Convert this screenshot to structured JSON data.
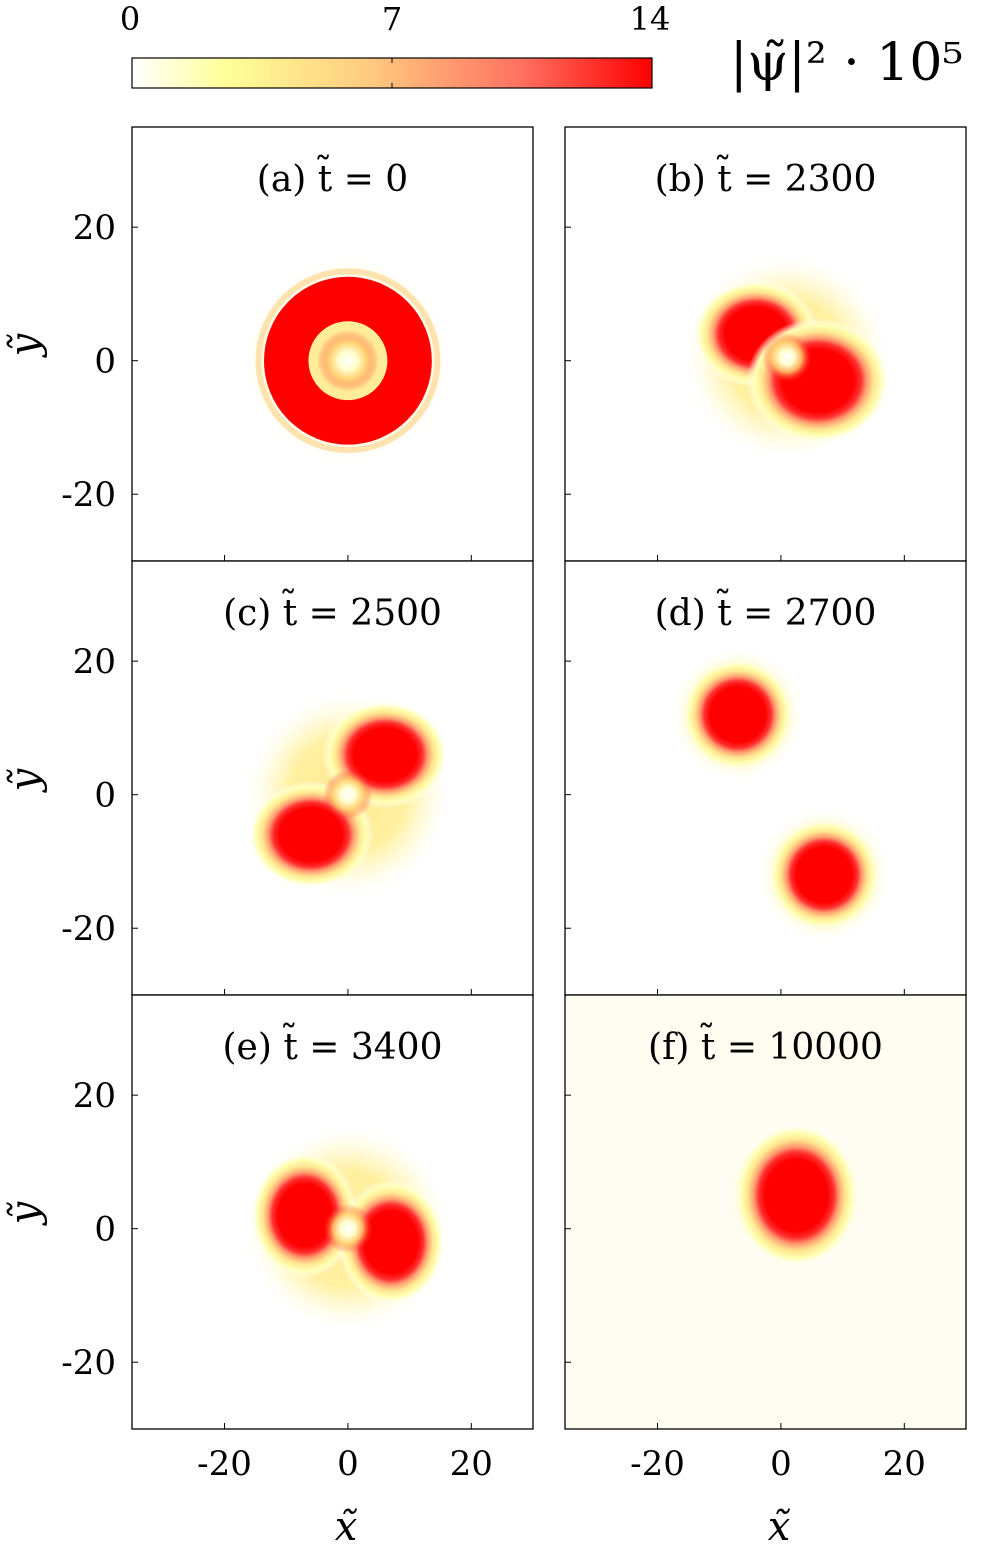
{
  "colorbar": {
    "ticks": [
      "0",
      "7",
      "14"
    ],
    "tick_values": [
      0,
      7,
      14
    ],
    "range": [
      0,
      14
    ],
    "label": "|ψ̃|² · 10⁵",
    "colormap": [
      "#ffffff",
      "#ffff99",
      "#ffcc80",
      "#ff7060",
      "#ff0000"
    ]
  },
  "axes": {
    "xlabel": "x̃",
    "ylabel": "ỹ",
    "x_tick_labels": [
      "-20",
      "0",
      "20"
    ],
    "y_tick_labels": [
      "20",
      "0",
      "-20"
    ]
  },
  "chart_data": [
    {
      "type": "heatmap",
      "title": "(a) t̃ = 0",
      "t": 0,
      "xlim": [
        -35,
        30
      ],
      "ylim": [
        -30,
        35
      ],
      "xticks": [
        -20,
        0,
        20
      ],
      "yticks": [
        -20,
        0,
        20
      ],
      "blobs": [
        {
          "shape": "ring",
          "cx": 0,
          "cy": 0,
          "radius": 10,
          "width": 4.5,
          "peak": 14
        }
      ],
      "halo_radius": 17
    },
    {
      "type": "heatmap",
      "title": "(b) t̃ = 2300",
      "t": 2300,
      "xlim": [
        -35,
        30
      ],
      "ylim": [
        -30,
        35
      ],
      "xticks": [
        -20,
        0,
        20
      ],
      "yticks": [
        -20,
        0,
        20
      ],
      "blobs": [
        {
          "shape": "lobe",
          "cx": -4,
          "cy": 4,
          "rx": 7,
          "ry": 6,
          "peak": 14
        },
        {
          "shape": "lobe",
          "cx": 6,
          "cy": -3,
          "rx": 8,
          "ry": 7,
          "peak": 14
        }
      ],
      "halo_radius": 17
    },
    {
      "type": "heatmap",
      "title": "(c) t̃ = 2500",
      "t": 2500,
      "xlim": [
        -35,
        30
      ],
      "ylim": [
        -30,
        35
      ],
      "xticks": [
        -20,
        0,
        20
      ],
      "yticks": [
        -20,
        0,
        20
      ],
      "blobs": [
        {
          "shape": "lobe",
          "cx": 6,
          "cy": 6,
          "rx": 7,
          "ry": 6,
          "peak": 14
        },
        {
          "shape": "lobe",
          "cx": -6,
          "cy": -6,
          "rx": 7,
          "ry": 6,
          "peak": 14
        }
      ],
      "halo_radius": 17
    },
    {
      "type": "heatmap",
      "title": "(d) t̃ = 2700",
      "t": 2700,
      "xlim": [
        -35,
        30
      ],
      "ylim": [
        -30,
        35
      ],
      "xticks": [
        -20,
        0,
        20
      ],
      "yticks": [
        -20,
        0,
        20
      ],
      "blobs": [
        {
          "shape": "spot",
          "cx": -7,
          "cy": 12,
          "rx": 6.2,
          "ry": 6.2,
          "peak": 14
        },
        {
          "shape": "spot",
          "cx": 7,
          "cy": -12,
          "rx": 6.2,
          "ry": 6.2,
          "peak": 14
        }
      ],
      "halo_radius": 11
    },
    {
      "type": "heatmap",
      "title": "(e) t̃ = 3400",
      "t": 3400,
      "xlim": [
        -35,
        30
      ],
      "ylim": [
        -30,
        35
      ],
      "xticks": [
        -20,
        0,
        20
      ],
      "yticks": [
        -20,
        0,
        20
      ],
      "blobs": [
        {
          "shape": "lobe",
          "cx": -7,
          "cy": 2,
          "rx": 6,
          "ry": 7,
          "peak": 14
        },
        {
          "shape": "lobe",
          "cx": 7,
          "cy": -2,
          "rx": 6,
          "ry": 7,
          "peak": 14
        }
      ],
      "halo_radius": 17
    },
    {
      "type": "heatmap",
      "title": "(f) t̃ = 10000",
      "t": 10000,
      "xlim": [
        -35,
        30
      ],
      "ylim": [
        -30,
        35
      ],
      "xticks": [
        -20,
        0,
        20
      ],
      "yticks": [
        -20,
        0,
        20
      ],
      "blobs": [
        {
          "shape": "spot",
          "cx": 2.5,
          "cy": 5,
          "rx": 7,
          "ry": 8,
          "peak": 14
        }
      ],
      "halo_radius": 12
    }
  ]
}
